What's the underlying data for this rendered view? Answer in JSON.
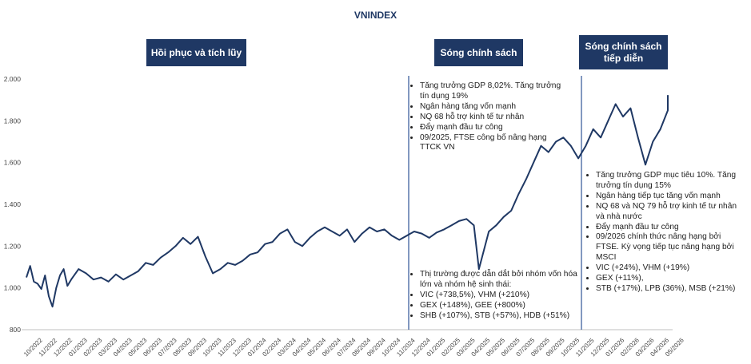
{
  "title": "VNINDEX",
  "phases": [
    {
      "label": "Hồi phục và tích lũy"
    },
    {
      "label": "Sóng chính sách"
    },
    {
      "label": "Sóng chính sách tiếp diễn"
    }
  ],
  "annotations": {
    "policy_factors": [
      "Tăng trưởng GDP 8,02%. Tăng trưởng tín dụng 19%",
      "Ngân hàng tăng vốn mạnh",
      "NQ 68 hỗ trợ kinh tế tư nhân",
      "Đẩy mạnh đầu tư công",
      "09/2025, FTSE công bố nâng hạng TTCK VN"
    ],
    "market_leaders": [
      "Thị trường được dẫn dắt bởi nhóm vốn hóa lớn và nhóm hệ sinh thái:",
      "VIC (+738,5%), VHM (+210%)",
      "GEX (+148%), GEE (+800%)",
      "SHB (+107%), STB (+57%), HDB (+51%)"
    ],
    "outlook": [
      "Tăng trưởng GDP mục tiêu 10%. Tăng trưởng tín dụng 15%",
      "Ngân hàng tiếp tục tăng vốn mạnh",
      "NQ 68 và NQ 79 hỗ trợ kinh tế  tư nhân và nhà nước",
      "Đẩy mạnh đầu tư công",
      "09/2026 chính thức nâng hạng bởi FTSE. Kỳ vọng tiếp tục nâng hạng bởi MSCI",
      "VIC (+24%), VHM (+19%)",
      "GEX (+11%),",
      "STB (+17%), LPB (36%), MSB (+21%)"
    ]
  },
  "colors": {
    "line": "#1f3864",
    "box": "#1f3864",
    "divider": "#2f5597",
    "axis": "#bfbfbf"
  },
  "chart_data": {
    "type": "line",
    "title": "VNINDEX",
    "ylim": [
      800,
      2000
    ],
    "y_ticks": [
      "2.000",
      "1.800",
      "1.600",
      "1.400",
      "1.200",
      "1.000",
      "800"
    ],
    "y_tick_values": [
      2000,
      1800,
      1600,
      1400,
      1200,
      1000,
      800
    ],
    "x_ticks": [
      "10/2022",
      "11/2022",
      "12/2022",
      "01/2023",
      "02/2023",
      "03/2023",
      "04/2023",
      "05/2023",
      "06/2023",
      "07/2023",
      "08/2023",
      "09/2023",
      "10/2023",
      "11/2023",
      "12/2023",
      "01/2024",
      "02/2024",
      "03/2024",
      "04/2024",
      "05/2024",
      "06/2024",
      "07/2024",
      "08/2024",
      "09/2024",
      "10/2024",
      "11/2024",
      "12/2024",
      "01/2025",
      "02/2025",
      "03/2025",
      "04/2025",
      "05/2025",
      "06/2025",
      "07/2025",
      "08/2025",
      "09/2025",
      "10/2025",
      "11/2025",
      "12/2025",
      "01/2026",
      "02/2026",
      "03/2026",
      "04/2026",
      "05/2026"
    ],
    "dividers_at": [
      "12/2024",
      "12/2025"
    ],
    "grid": false,
    "series": [
      {
        "points": [
          [
            "10/2022",
            1050
          ],
          [
            "10/2022",
            1105
          ],
          [
            "10/2022",
            1030
          ],
          [
            "10/2022",
            1020
          ],
          [
            "11/2022",
            995
          ],
          [
            "11/2022",
            1060
          ],
          [
            "11/2022",
            960
          ],
          [
            "11/2022",
            910
          ],
          [
            "12/2022",
            1000
          ],
          [
            "12/2022",
            1060
          ],
          [
            "12/2022",
            1090
          ],
          [
            "12/2022",
            1010
          ],
          [
            "01/2023",
            1040
          ],
          [
            "01/2023",
            1090
          ],
          [
            "02/2023",
            1070
          ],
          [
            "02/2023",
            1040
          ],
          [
            "03/2023",
            1050
          ],
          [
            "03/2023",
            1030
          ],
          [
            "04/2023",
            1065
          ],
          [
            "04/2023",
            1040
          ],
          [
            "05/2023",
            1060
          ],
          [
            "05/2023",
            1080
          ],
          [
            "06/2023",
            1120
          ],
          [
            "06/2023",
            1110
          ],
          [
            "07/2023",
            1145
          ],
          [
            "07/2023",
            1170
          ],
          [
            "08/2023",
            1200
          ],
          [
            "08/2023",
            1240
          ],
          [
            "09/2023",
            1210
          ],
          [
            "09/2023",
            1245
          ],
          [
            "10/2023",
            1150
          ],
          [
            "10/2023",
            1070
          ],
          [
            "11/2023",
            1090
          ],
          [
            "11/2023",
            1120
          ],
          [
            "12/2023",
            1110
          ],
          [
            "12/2023",
            1130
          ],
          [
            "01/2024",
            1160
          ],
          [
            "01/2024",
            1170
          ],
          [
            "02/2024",
            1210
          ],
          [
            "02/2024",
            1220
          ],
          [
            "03/2024",
            1260
          ],
          [
            "03/2024",
            1280
          ],
          [
            "04/2024",
            1220
          ],
          [
            "04/2024",
            1200
          ],
          [
            "05/2024",
            1240
          ],
          [
            "05/2024",
            1270
          ],
          [
            "06/2024",
            1290
          ],
          [
            "06/2024",
            1270
          ],
          [
            "07/2024",
            1250
          ],
          [
            "07/2024",
            1280
          ],
          [
            "08/2024",
            1220
          ],
          [
            "08/2024",
            1260
          ],
          [
            "09/2024",
            1290
          ],
          [
            "09/2024",
            1270
          ],
          [
            "10/2024",
            1280
          ],
          [
            "10/2024",
            1250
          ],
          [
            "11/2024",
            1230
          ],
          [
            "11/2024",
            1250
          ],
          [
            "12/2024",
            1270
          ],
          [
            "12/2024",
            1260
          ],
          [
            "01/2025",
            1240
          ],
          [
            "01/2025",
            1265
          ],
          [
            "02/2025",
            1280
          ],
          [
            "02/2025",
            1300
          ],
          [
            "03/2025",
            1320
          ],
          [
            "03/2025",
            1330
          ],
          [
            "04/2025",
            1300
          ],
          [
            "04/2025",
            1090
          ],
          [
            "04/2025",
            1180
          ],
          [
            "05/2025",
            1270
          ],
          [
            "05/2025",
            1300
          ],
          [
            "06/2025",
            1340
          ],
          [
            "06/2025",
            1370
          ],
          [
            "07/2025",
            1450
          ],
          [
            "07/2025",
            1520
          ],
          [
            "08/2025",
            1600
          ],
          [
            "08/2025",
            1680
          ],
          [
            "09/2025",
            1650
          ],
          [
            "09/2025",
            1700
          ],
          [
            "10/2025",
            1720
          ],
          [
            "10/2025",
            1680
          ],
          [
            "11/2025",
            1620
          ],
          [
            "11/2025",
            1680
          ],
          [
            "12/2025",
            1760
          ],
          [
            "12/2025",
            1720
          ],
          [
            "01/2026",
            1800
          ],
          [
            "01/2026",
            1880
          ],
          [
            "02/2026",
            1820
          ],
          [
            "02/2026",
            1860
          ],
          [
            "03/2026",
            1720
          ],
          [
            "03/2026",
            1590
          ],
          [
            "04/2026",
            1700
          ],
          [
            "04/2026",
            1760
          ],
          [
            "05/2026",
            1850
          ],
          [
            "05/2026",
            1920
          ],
          [
            "05/2026",
            1880
          ]
        ]
      }
    ]
  }
}
